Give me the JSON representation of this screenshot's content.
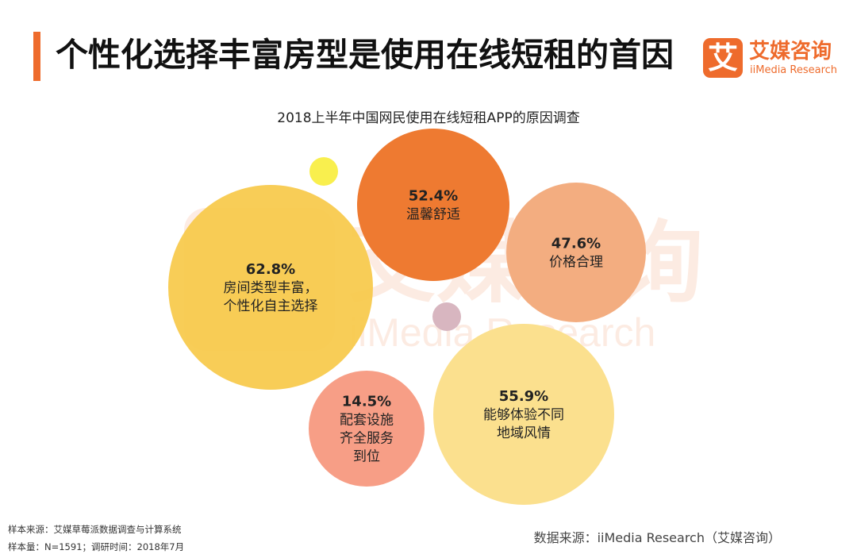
{
  "header": {
    "title": "个性化选择丰富房型是使用在线短租的首因"
  },
  "logo": {
    "glyph": "艾",
    "name_cn": "艾媒咨询",
    "name_en": "iiMedia Research",
    "color": "#ee6b2c"
  },
  "watermark": {
    "cn": "艾媒咨询",
    "en": "iiMedia Research"
  },
  "chart_data": {
    "type": "bubble",
    "title": "2018上半年中国网民使用在线短租APP的原因调查",
    "unit": "%",
    "items": [
      {
        "value": 62.8,
        "value_label": "62.8%",
        "label_lines": [
          "房间类型丰富，",
          "个性化自主选择"
        ],
        "color": "#f7c94a"
      },
      {
        "value": 52.4,
        "value_label": "52.4%",
        "label_lines": [
          "温馨舒适"
        ],
        "color": "#ee7a31"
      },
      {
        "value": 47.6,
        "value_label": "47.6%",
        "label_lines": [
          "价格合理"
        ],
        "color": "#f3ad80"
      },
      {
        "value": 55.9,
        "value_label": "55.9%",
        "label_lines": [
          "能够体验不同",
          "地域风情"
        ],
        "color": "#fbe08e"
      },
      {
        "value": 14.5,
        "value_label": "14.5%",
        "label_lines": [
          "配套设施",
          "齐全服务",
          "到位"
        ],
        "color": "#f79e86"
      }
    ],
    "decorations": [
      {
        "color": "#f9ef4e"
      },
      {
        "color": "#d8b6c0"
      }
    ]
  },
  "footer": {
    "sample_source": "样本来源：艾媒草莓派数据调查与计算系统",
    "sample_size": "样本量：N=1591；调研时间：2018年7月",
    "data_source": "数据来源：iiMedia Research（艾媒咨询）"
  }
}
